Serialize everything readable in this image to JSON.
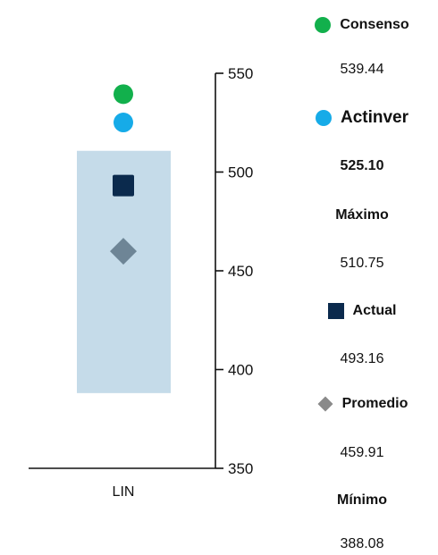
{
  "chart_data": {
    "type": "scatter",
    "categories": [
      "LIN"
    ],
    "ylim": [
      350,
      550
    ],
    "yticks": [
      350,
      400,
      450,
      500,
      550
    ],
    "range": {
      "name": "Máximo / Mínimo",
      "low": 388.08,
      "high": 510.75,
      "color": "#c5dbe9"
    },
    "points": [
      {
        "name": "Consenso",
        "value": 539.44,
        "marker": "circle",
        "color": "#12b04c"
      },
      {
        "name": "Actinver",
        "value": 525.1,
        "marker": "circle",
        "color": "#16abe8"
      },
      {
        "name": "Actual",
        "value": 493.16,
        "marker": "square",
        "color": "#0b2a4d"
      },
      {
        "name": "Promedio",
        "value": 459.91,
        "marker": "diamond",
        "color": "#6e8596"
      }
    ],
    "title": "",
    "xlabel": "",
    "ylabel": "",
    "grid": false,
    "legend": "right"
  },
  "legend": {
    "consenso": {
      "label": "Consenso",
      "value": "539.44",
      "icon": "green-circle",
      "color": "#12b04c"
    },
    "actinver": {
      "label": "Actinver",
      "value": "525.10",
      "icon": "blue-circle",
      "color": "#16abe8"
    },
    "maximo": {
      "label": "Máximo",
      "value": "510.75"
    },
    "actual": {
      "label": "Actual",
      "value": "493.16",
      "icon": "navy-square",
      "color": "#0b2a4d"
    },
    "promedio": {
      "label": "Promedio",
      "value": "459.91",
      "icon": "gray-diamond",
      "color": "#8a8a8a"
    },
    "minimo": {
      "label": "Mínimo",
      "value": "388.08"
    }
  }
}
